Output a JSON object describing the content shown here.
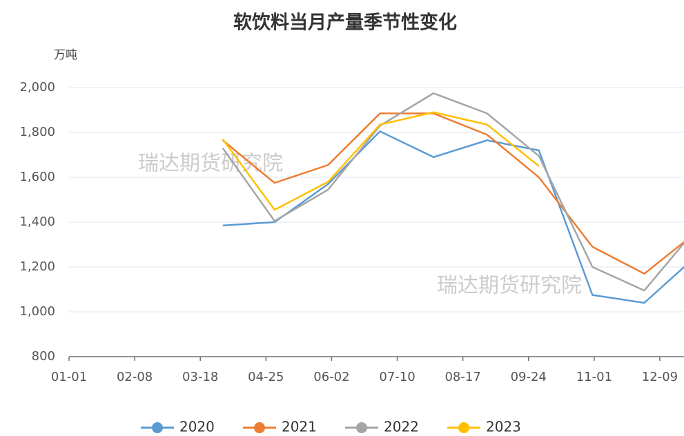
{
  "chart_data": {
    "type": "line",
    "title": "软饮料当月产量季节性变化",
    "y_label": "万吨",
    "watermark": "瑞达期货研究院",
    "x": [
      "03-31",
      "04-30",
      "05-31",
      "06-30",
      "07-31",
      "08-31",
      "09-30",
      "10-31",
      "11-30",
      "12-31"
    ],
    "series": [
      {
        "name": "2020",
        "color": "#5b9bd5",
        "values": [
          1385,
          1400,
          1570,
          1805,
          1690,
          1765,
          1720,
          1075,
          1040,
          1255
        ]
      },
      {
        "name": "2021",
        "color": "#ed7d31",
        "values": [
          1765,
          1575,
          1655,
          1885,
          1885,
          1790,
          1600,
          1290,
          1170,
          1360
        ]
      },
      {
        "name": "2022",
        "color": "#a5a5a5",
        "values": [
          1730,
          1405,
          1545,
          1830,
          1975,
          1885,
          1695,
          1200,
          1095,
          1380
        ]
      },
      {
        "name": "2023",
        "color": "#ffc000",
        "values": [
          1770,
          1455,
          1580,
          1835,
          1890,
          1835,
          1650,
          null,
          null,
          null
        ]
      }
    ],
    "xlim": [
      "01-01",
      "12-23"
    ],
    "xticks": [
      "01-01",
      "02-08",
      "03-18",
      "04-25",
      "06-02",
      "07-10",
      "08-17",
      "09-24",
      "11-01",
      "12-09"
    ],
    "ylim": [
      800,
      2000
    ],
    "yticks": [
      800,
      {
        "value": 1000,
        "label": "1,000"
      },
      {
        "value": 1200,
        "label": "1,200"
      },
      {
        "value": 1400,
        "label": "1,400"
      },
      {
        "value": 1600,
        "label": "1,600"
      },
      {
        "value": 1800,
        "label": "1,800"
      },
      {
        "value": 2000,
        "label": "2,000"
      }
    ],
    "grid": true,
    "legend": "bottom"
  }
}
